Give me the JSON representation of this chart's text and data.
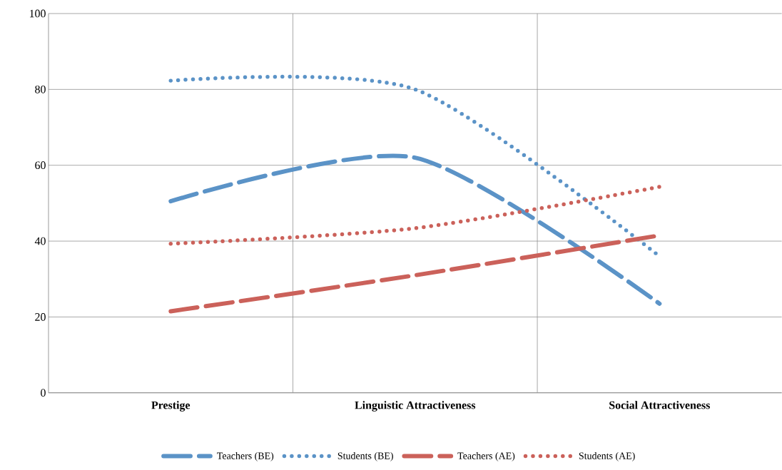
{
  "chart_data": {
    "type": "line",
    "categories": [
      "Prestige",
      "Linguistic Attractiveness",
      "Social Attractiveness"
    ],
    "series": [
      {
        "name": "Teachers (BE)",
        "color": "#5b93c7",
        "line_style": "dashed",
        "values": [
          50.5,
          62,
          23.5
        ]
      },
      {
        "name": "Students (BE)",
        "color": "#5b93c7",
        "line_style": "dotted",
        "values": [
          82.3,
          80,
          36
        ]
      },
      {
        "name": "Teachers (AE)",
        "color": "#cb615a",
        "line_style": "dashed",
        "values": [
          21.5,
          31,
          41.5
        ]
      },
      {
        "name": "Students (AE)",
        "color": "#cb615a",
        "line_style": "dotted",
        "values": [
          39.3,
          43.4,
          54.3
        ]
      }
    ],
    "ylim": [
      0,
      100
    ],
    "yticks": [
      0,
      20,
      40,
      60,
      80,
      100
    ],
    "grid": true,
    "legend": "bottom"
  }
}
